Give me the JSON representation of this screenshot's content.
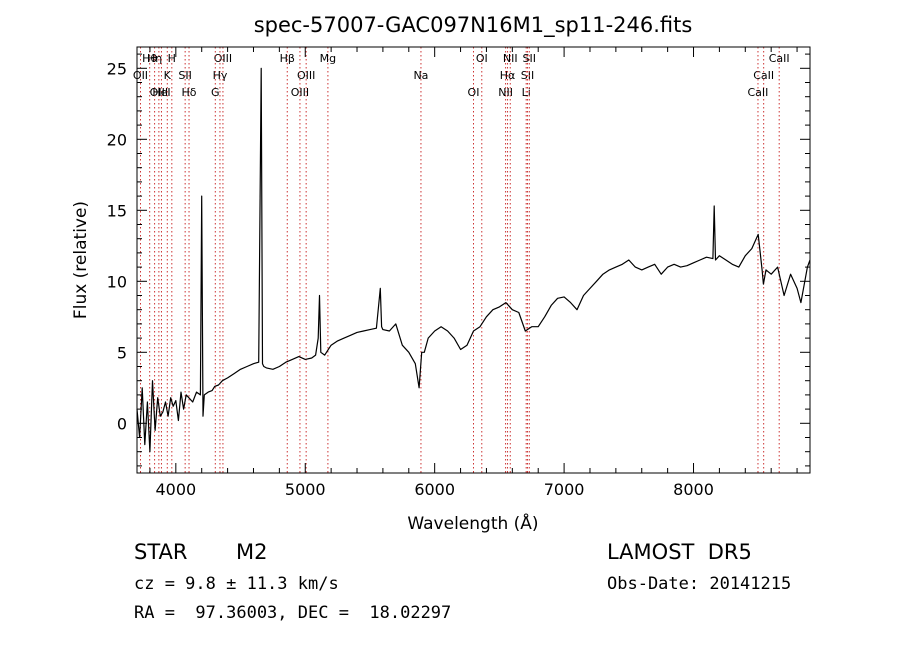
{
  "chart_data": {
    "type": "line",
    "title": "spec-57007-GAC097N16M1_sp11-246.fits",
    "xlabel": "Wavelength (Å)",
    "ylabel": "Flux (relative)",
    "xlim": [
      3700,
      8900
    ],
    "ylim": [
      -3.5,
      26.5
    ],
    "x_ticks": [
      4000,
      5000,
      6000,
      7000,
      8000
    ],
    "x_tick_labels": [
      "4000",
      "5000",
      "6000",
      "7000",
      "8000"
    ],
    "y_ticks": [
      0,
      5,
      10,
      15,
      20,
      25
    ],
    "y_tick_labels": [
      "0",
      "5",
      "10",
      "15",
      "20",
      "25"
    ],
    "grid": false,
    "legend": "none",
    "line_color": "#000000",
    "marker_color": "#cc3333",
    "series": [
      {
        "x": [
          3700,
          3720,
          3740,
          3760,
          3780,
          3800,
          3820,
          3840,
          3860,
          3880,
          3900,
          3920,
          3940,
          3960,
          3980,
          4000,
          4020,
          4040,
          4060,
          4080,
          4100,
          4130,
          4160,
          4190,
          4200,
          4210,
          4220,
          4250,
          4280,
          4300,
          4330,
          4360,
          4400,
          4450,
          4500,
          4550,
          4600,
          4640,
          4660,
          4670,
          4680,
          4700,
          4750,
          4800,
          4850,
          4900,
          4950,
          5000,
          5050,
          5080,
          5100,
          5110,
          5120,
          5150,
          5200,
          5250,
          5300,
          5350,
          5400,
          5450,
          5500,
          5550,
          5580,
          5590,
          5600,
          5650,
          5700,
          5750,
          5800,
          5850,
          5880,
          5900,
          5920,
          5950,
          6000,
          6050,
          6100,
          6150,
          6200,
          6250,
          6300,
          6350,
          6400,
          6450,
          6500,
          6550,
          6600,
          6650,
          6700,
          6750,
          6800,
          6850,
          6900,
          6950,
          7000,
          7050,
          7100,
          7150,
          7200,
          7250,
          7300,
          7350,
          7400,
          7450,
          7500,
          7550,
          7600,
          7650,
          7700,
          7750,
          7800,
          7850,
          7900,
          7950,
          8000,
          8050,
          8100,
          8150,
          8160,
          8170,
          8200,
          8250,
          8300,
          8350,
          8400,
          8450,
          8500,
          8530,
          8540,
          8560,
          8600,
          8650,
          8700,
          8750,
          8800,
          8830,
          8860,
          8880,
          8900
        ],
        "y": [
          1.0,
          -1.0,
          2.5,
          -1.5,
          1.5,
          -2.0,
          3.0,
          -0.5,
          1.8,
          0.5,
          0.8,
          1.5,
          0.5,
          1.8,
          1.2,
          1.6,
          0.2,
          2.2,
          1.0,
          2.0,
          1.8,
          1.5,
          2.2,
          2.0,
          16.0,
          0.5,
          2.0,
          2.2,
          2.3,
          2.6,
          2.7,
          3.0,
          3.2,
          3.5,
          3.8,
          4.0,
          4.2,
          4.3,
          25.0,
          4.2,
          4.0,
          3.9,
          3.8,
          4.0,
          4.3,
          4.5,
          4.7,
          4.5,
          4.6,
          4.8,
          6.0,
          9.0,
          5.0,
          4.8,
          5.5,
          5.8,
          6.0,
          6.2,
          6.4,
          6.5,
          6.6,
          6.7,
          9.5,
          6.8,
          6.6,
          6.5,
          7.0,
          5.5,
          5.0,
          4.2,
          2.5,
          5.0,
          5.0,
          6.0,
          6.5,
          6.8,
          6.5,
          6.0,
          5.2,
          5.5,
          6.5,
          6.8,
          7.5,
          8.0,
          8.2,
          8.5,
          8.0,
          7.8,
          6.5,
          6.8,
          6.8,
          7.5,
          8.3,
          8.8,
          8.9,
          8.5,
          8.0,
          9.0,
          9.5,
          10.0,
          10.5,
          10.8,
          11.0,
          11.2,
          11.5,
          11.0,
          10.8,
          11.0,
          11.2,
          10.5,
          11.0,
          11.2,
          11.0,
          11.1,
          11.3,
          11.5,
          11.7,
          11.6,
          15.3,
          11.5,
          11.8,
          11.5,
          11.2,
          11.0,
          11.8,
          12.3,
          13.3,
          10.8,
          9.8,
          10.8,
          10.5,
          11.0,
          9.0,
          10.5,
          9.5,
          8.5,
          10.0,
          11.0,
          11.5
        ]
      }
    ],
    "lines": [
      {
        "label": "Hθ",
        "x": 3798
      },
      {
        "label": "OII",
        "x": 3727
      },
      {
        "label": "OIII",
        "x": 3869
      },
      {
        "label": "Hη",
        "x": 3836
      },
      {
        "label": "K",
        "x": 3934
      },
      {
        "label": "HeI",
        "x": 3889
      },
      {
        "label": "H",
        "x": 3969
      },
      {
        "label": "SII",
        "x": 4072
      },
      {
        "label": "Hδ",
        "x": 4102
      },
      {
        "label": "OIII",
        "x": 4364
      },
      {
        "label": "Hγ",
        "x": 4341
      },
      {
        "label": "G",
        "x": 4305
      },
      {
        "label": "Hβ",
        "x": 4861
      },
      {
        "label": "OIII",
        "x": 5007
      },
      {
        "label": "OIII",
        "x": 4959
      },
      {
        "label": "Mg",
        "x": 5175
      },
      {
        "label": "Na",
        "x": 5894
      },
      {
        "label": "OI",
        "x": 6300
      },
      {
        "label": "OI",
        "x": 6364
      },
      {
        "label": "Hα",
        "x": 6563
      },
      {
        "label": "NII",
        "x": 6548
      },
      {
        "label": "NII",
        "x": 6584
      },
      {
        "label": "SII",
        "x": 6717
      },
      {
        "label": "Li",
        "x": 6707
      },
      {
        "label": "SII",
        "x": 6731
      },
      {
        "label": "CaII",
        "x": 8542
      },
      {
        "label": "CaII",
        "x": 8498
      },
      {
        "label": "CaII",
        "x": 8662
      }
    ]
  },
  "info": {
    "object_class": "STAR",
    "subclass": "M2",
    "survey": "LAMOST  DR5",
    "redshift_text": "cz = 9.8 ± 11.3 km/s",
    "obs_date": "Obs-Date: 20141215",
    "coords": "RA =  97.36003, DEC =  18.02297"
  }
}
